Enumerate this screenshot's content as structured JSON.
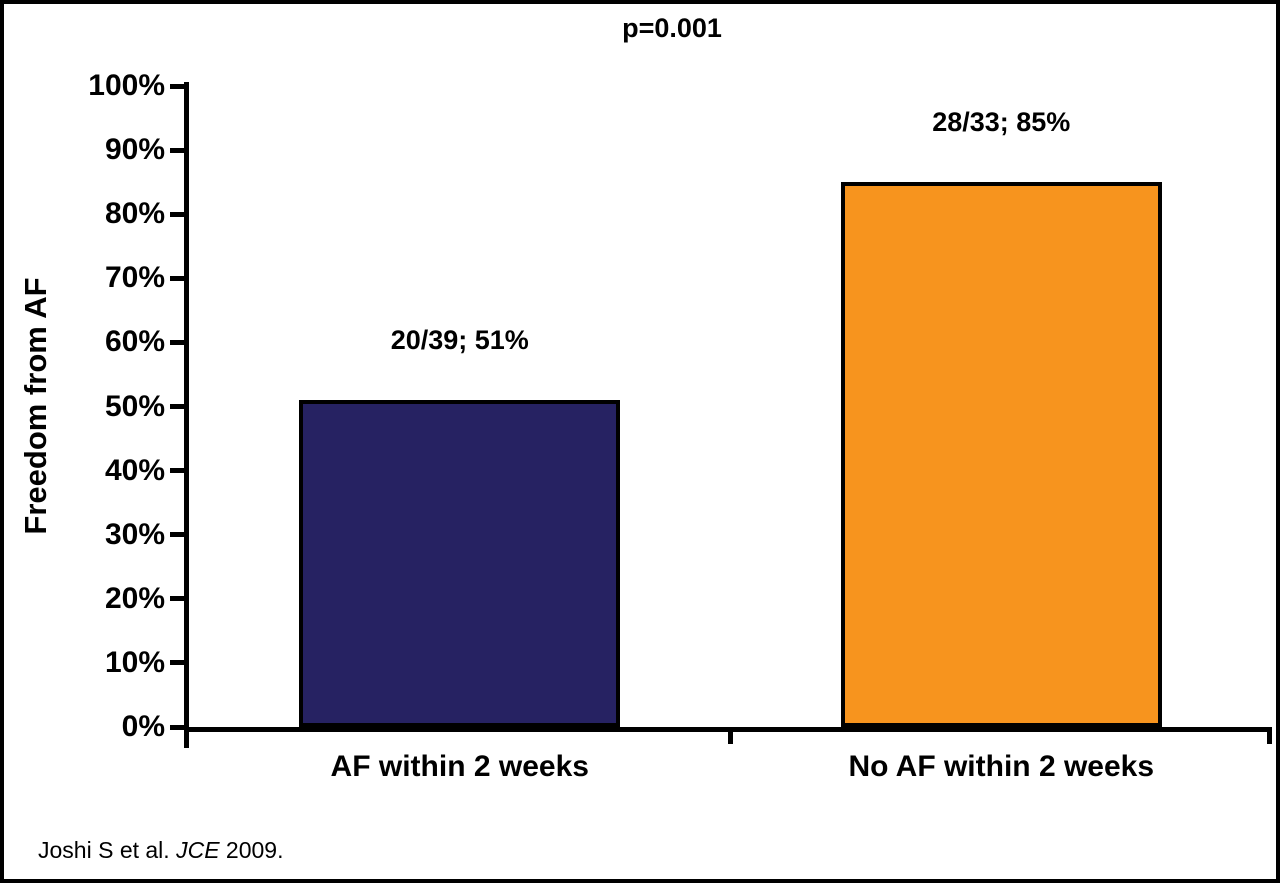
{
  "chart_data": {
    "type": "bar",
    "title": "p=0.001",
    "ylabel": "Freedom from AF",
    "xlabel": "",
    "ylim": [
      0,
      100
    ],
    "yticks": [
      0,
      10,
      20,
      30,
      40,
      50,
      60,
      70,
      80,
      90,
      100
    ],
    "ytick_suffix": "%",
    "categories": [
      "AF within 2 weeks",
      "No AF within 2 weeks"
    ],
    "values": [
      51,
      85
    ],
    "bar_labels": [
      "20/39; 51%",
      "28/33; 85%"
    ],
    "bar_colors": [
      "#262262",
      "#F7941E"
    ],
    "grid": false,
    "legend": "none"
  },
  "footer": {
    "citation_prefix": "Joshi S et al. ",
    "citation_italic": "JCE",
    "citation_suffix": " 2009."
  }
}
